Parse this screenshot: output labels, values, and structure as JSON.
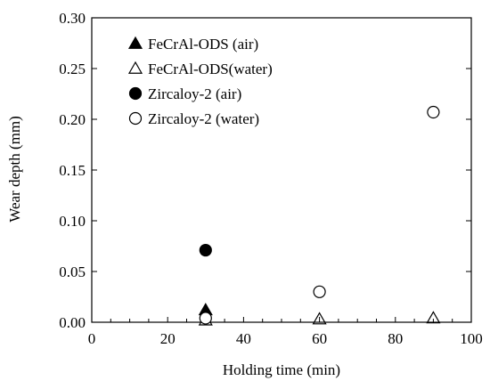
{
  "chart_data": {
    "type": "scatter",
    "xlabel": "Holding time (min)",
    "ylabel": "Wear depth (mm)",
    "xlim": [
      0,
      100
    ],
    "ylim": [
      0,
      0.3
    ],
    "xticks": [
      0,
      20,
      40,
      60,
      80,
      100
    ],
    "yticks": [
      0.0,
      0.05,
      0.1,
      0.15,
      0.2,
      0.25,
      0.3
    ],
    "xtick_labels": [
      "0",
      "20",
      "40",
      "60",
      "80",
      "100"
    ],
    "ytick_labels": [
      "0.00",
      "0.05",
      "0.10",
      "0.15",
      "0.20",
      "0.25",
      "0.30"
    ],
    "grid": false,
    "legend_position": "upper-left",
    "series": [
      {
        "name": "FeCrAl-ODS (air)",
        "marker": "filled-triangle",
        "color": "#000000",
        "points": [
          {
            "x": 30,
            "y": 0.012
          }
        ]
      },
      {
        "name": "FeCrAl-ODS(water)",
        "marker": "open-triangle",
        "color": "#000000",
        "points": [
          {
            "x": 30,
            "y": 0.002
          },
          {
            "x": 60,
            "y": 0.003
          },
          {
            "x": 90,
            "y": 0.004
          }
        ]
      },
      {
        "name": "Zircaloy-2 (air)",
        "marker": "filled-circle",
        "color": "#000000",
        "points": [
          {
            "x": 30,
            "y": 0.071
          }
        ]
      },
      {
        "name": "Zircaloy-2 (water)",
        "marker": "open-circle",
        "color": "#000000",
        "points": [
          {
            "x": 30,
            "y": 0.004
          },
          {
            "x": 60,
            "y": 0.03
          },
          {
            "x": 90,
            "y": 0.207
          }
        ]
      }
    ]
  }
}
